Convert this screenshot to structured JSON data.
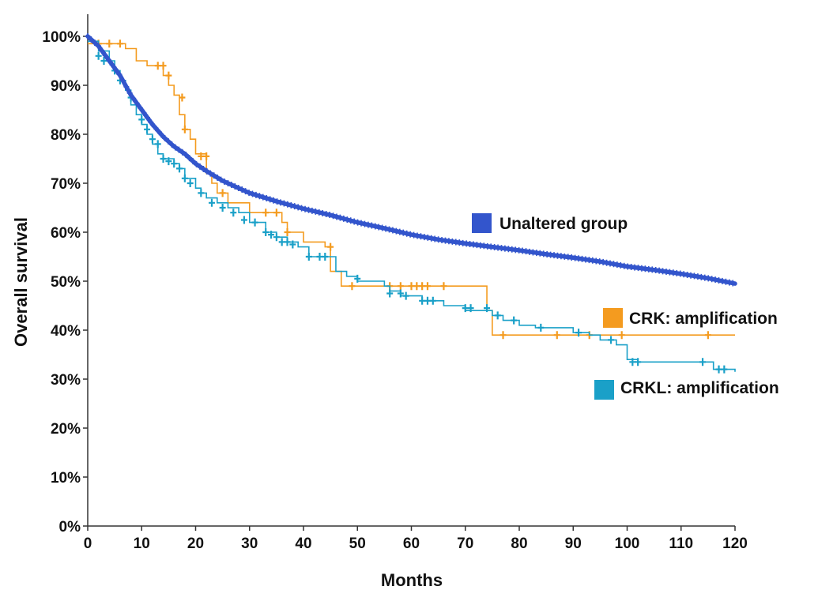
{
  "chart_data": {
    "type": "line",
    "title": "",
    "xlabel": "Months",
    "ylabel": "Overall survival",
    "xlim": [
      0,
      120
    ],
    "ylim": [
      0,
      100
    ],
    "x_ticks": [
      "0",
      "10",
      "20",
      "30",
      "40",
      "50",
      "60",
      "70",
      "80",
      "90",
      "100",
      "110",
      "120"
    ],
    "y_ticks": [
      "0%",
      "10%",
      "20%",
      "30%",
      "40%",
      "50%",
      "60%",
      "70%",
      "80%",
      "90%",
      "100%"
    ],
    "grid": false,
    "legend_position": "inline-right",
    "series": [
      {
        "name": "Unaltered group",
        "color": "#3355cc",
        "style": "curve",
        "points": [
          [
            0,
            100
          ],
          [
            1,
            99
          ],
          [
            2,
            98
          ],
          [
            3,
            96.5
          ],
          [
            4,
            95
          ],
          [
            5,
            93.5
          ],
          [
            6,
            92
          ],
          [
            7,
            90
          ],
          [
            8,
            88
          ],
          [
            9,
            86.5
          ],
          [
            10,
            85
          ],
          [
            12,
            82
          ],
          [
            14,
            79.5
          ],
          [
            16,
            77.5
          ],
          [
            18,
            76
          ],
          [
            20,
            74
          ],
          [
            22,
            72.5
          ],
          [
            25,
            70.5
          ],
          [
            28,
            69
          ],
          [
            30,
            68
          ],
          [
            35,
            66.3
          ],
          [
            40,
            64.8
          ],
          [
            45,
            63.5
          ],
          [
            50,
            62
          ],
          [
            55,
            60.8
          ],
          [
            60,
            59.5
          ],
          [
            65,
            58.5
          ],
          [
            70,
            57.7
          ],
          [
            75,
            57
          ],
          [
            80,
            56.3
          ],
          [
            85,
            55.5
          ],
          [
            90,
            54.8
          ],
          [
            95,
            54
          ],
          [
            100,
            53
          ],
          [
            105,
            52.3
          ],
          [
            110,
            51.5
          ],
          [
            115,
            50.6
          ],
          [
            120,
            49.5
          ]
        ]
      },
      {
        "name": "CRK: amplification",
        "color": "#f49b1f",
        "style": "step",
        "points": [
          [
            0,
            98.5
          ],
          [
            1,
            98.5
          ],
          [
            6,
            98.5
          ],
          [
            7,
            97.5
          ],
          [
            9,
            95
          ],
          [
            11,
            94
          ],
          [
            14,
            92
          ],
          [
            15,
            90
          ],
          [
            16,
            88
          ],
          [
            17,
            84
          ],
          [
            18,
            81
          ],
          [
            19,
            79
          ],
          [
            20,
            76
          ],
          [
            22,
            72
          ],
          [
            23,
            70
          ],
          [
            24,
            68
          ],
          [
            26,
            66
          ],
          [
            30,
            64
          ],
          [
            34,
            64
          ],
          [
            36,
            62
          ],
          [
            37,
            60
          ],
          [
            40,
            58
          ],
          [
            44,
            57
          ],
          [
            45,
            52
          ],
          [
            47,
            49
          ],
          [
            50,
            49
          ],
          [
            73,
            49
          ],
          [
            74,
            44
          ],
          [
            75,
            39
          ],
          [
            120,
            39
          ]
        ],
        "censors": [
          [
            2,
            98.5
          ],
          [
            4,
            98.5
          ],
          [
            6,
            98.5
          ],
          [
            13,
            94
          ],
          [
            14,
            94
          ],
          [
            15,
            92
          ],
          [
            17.5,
            87.5
          ],
          [
            18,
            81
          ],
          [
            21,
            75.5
          ],
          [
            22,
            75.5
          ],
          [
            25,
            68
          ],
          [
            33,
            64
          ],
          [
            35,
            64
          ],
          [
            37,
            60
          ],
          [
            45,
            57
          ],
          [
            49,
            49
          ],
          [
            56,
            49
          ],
          [
            58,
            49
          ],
          [
            60,
            49
          ],
          [
            61,
            49
          ],
          [
            62,
            49
          ],
          [
            63,
            49
          ],
          [
            66,
            49
          ],
          [
            77,
            39
          ],
          [
            87,
            39
          ],
          [
            93,
            39
          ],
          [
            99,
            39
          ],
          [
            115,
            39
          ]
        ]
      },
      {
        "name": "CRKL: amplification",
        "color": "#1aa0c8",
        "style": "step",
        "points": [
          [
            0,
            99
          ],
          [
            2,
            97
          ],
          [
            4,
            95
          ],
          [
            5,
            93
          ],
          [
            6,
            91
          ],
          [
            7,
            89
          ],
          [
            8,
            86
          ],
          [
            9,
            84
          ],
          [
            10,
            82
          ],
          [
            11,
            80
          ],
          [
            12,
            78
          ],
          [
            13,
            76
          ],
          [
            14,
            75
          ],
          [
            16,
            74
          ],
          [
            17,
            73
          ],
          [
            18,
            71
          ],
          [
            20,
            69
          ],
          [
            21,
            68
          ],
          [
            22,
            67
          ],
          [
            24,
            66
          ],
          [
            26,
            65
          ],
          [
            28,
            64
          ],
          [
            30,
            62
          ],
          [
            33,
            60
          ],
          [
            35,
            59
          ],
          [
            37,
            58
          ],
          [
            39,
            57
          ],
          [
            41,
            55
          ],
          [
            44,
            55
          ],
          [
            46,
            52
          ],
          [
            48,
            51
          ],
          [
            50,
            50
          ],
          [
            55,
            49
          ],
          [
            56,
            48
          ],
          [
            58,
            47
          ],
          [
            62,
            46
          ],
          [
            66,
            45
          ],
          [
            70,
            44
          ],
          [
            74,
            44
          ],
          [
            75,
            43
          ],
          [
            77,
            42
          ],
          [
            80,
            41
          ],
          [
            83,
            40.5
          ],
          [
            88,
            40.5
          ],
          [
            90,
            39.5
          ],
          [
            93,
            39
          ],
          [
            95,
            38
          ],
          [
            98,
            37
          ],
          [
            100,
            34
          ],
          [
            102,
            33.5
          ],
          [
            108,
            33.5
          ],
          [
            116,
            32
          ],
          [
            120,
            31.5
          ]
        ],
        "censors": [
          [
            2,
            96
          ],
          [
            3,
            95
          ],
          [
            5,
            93
          ],
          [
            6,
            91
          ],
          [
            8,
            87.5
          ],
          [
            10,
            83
          ],
          [
            11,
            81
          ],
          [
            12,
            79
          ],
          [
            13,
            78
          ],
          [
            14,
            75
          ],
          [
            15,
            74.5
          ],
          [
            16,
            74
          ],
          [
            17,
            73
          ],
          [
            18,
            71
          ],
          [
            19,
            70
          ],
          [
            21,
            68
          ],
          [
            23,
            66
          ],
          [
            25,
            65
          ],
          [
            27,
            64
          ],
          [
            29,
            62.5
          ],
          [
            31,
            62
          ],
          [
            33,
            60
          ],
          [
            34,
            59.5
          ],
          [
            35,
            59
          ],
          [
            36,
            58
          ],
          [
            37,
            58
          ],
          [
            38,
            57.5
          ],
          [
            41,
            55
          ],
          [
            43,
            55
          ],
          [
            44,
            55
          ],
          [
            50,
            50.5
          ],
          [
            56,
            47.5
          ],
          [
            58,
            47.5
          ],
          [
            59,
            47
          ],
          [
            62,
            46
          ],
          [
            63,
            46
          ],
          [
            64,
            46
          ],
          [
            70,
            44.5
          ],
          [
            71,
            44.5
          ],
          [
            74,
            44.5
          ],
          [
            76,
            43
          ],
          [
            79,
            42
          ],
          [
            84,
            40.5
          ],
          [
            91,
            39.5
          ],
          [
            97,
            38
          ],
          [
            101,
            33.5
          ],
          [
            102,
            33.5
          ],
          [
            114,
            33.5
          ],
          [
            117,
            32
          ],
          [
            118,
            32
          ]
        ]
      }
    ]
  }
}
